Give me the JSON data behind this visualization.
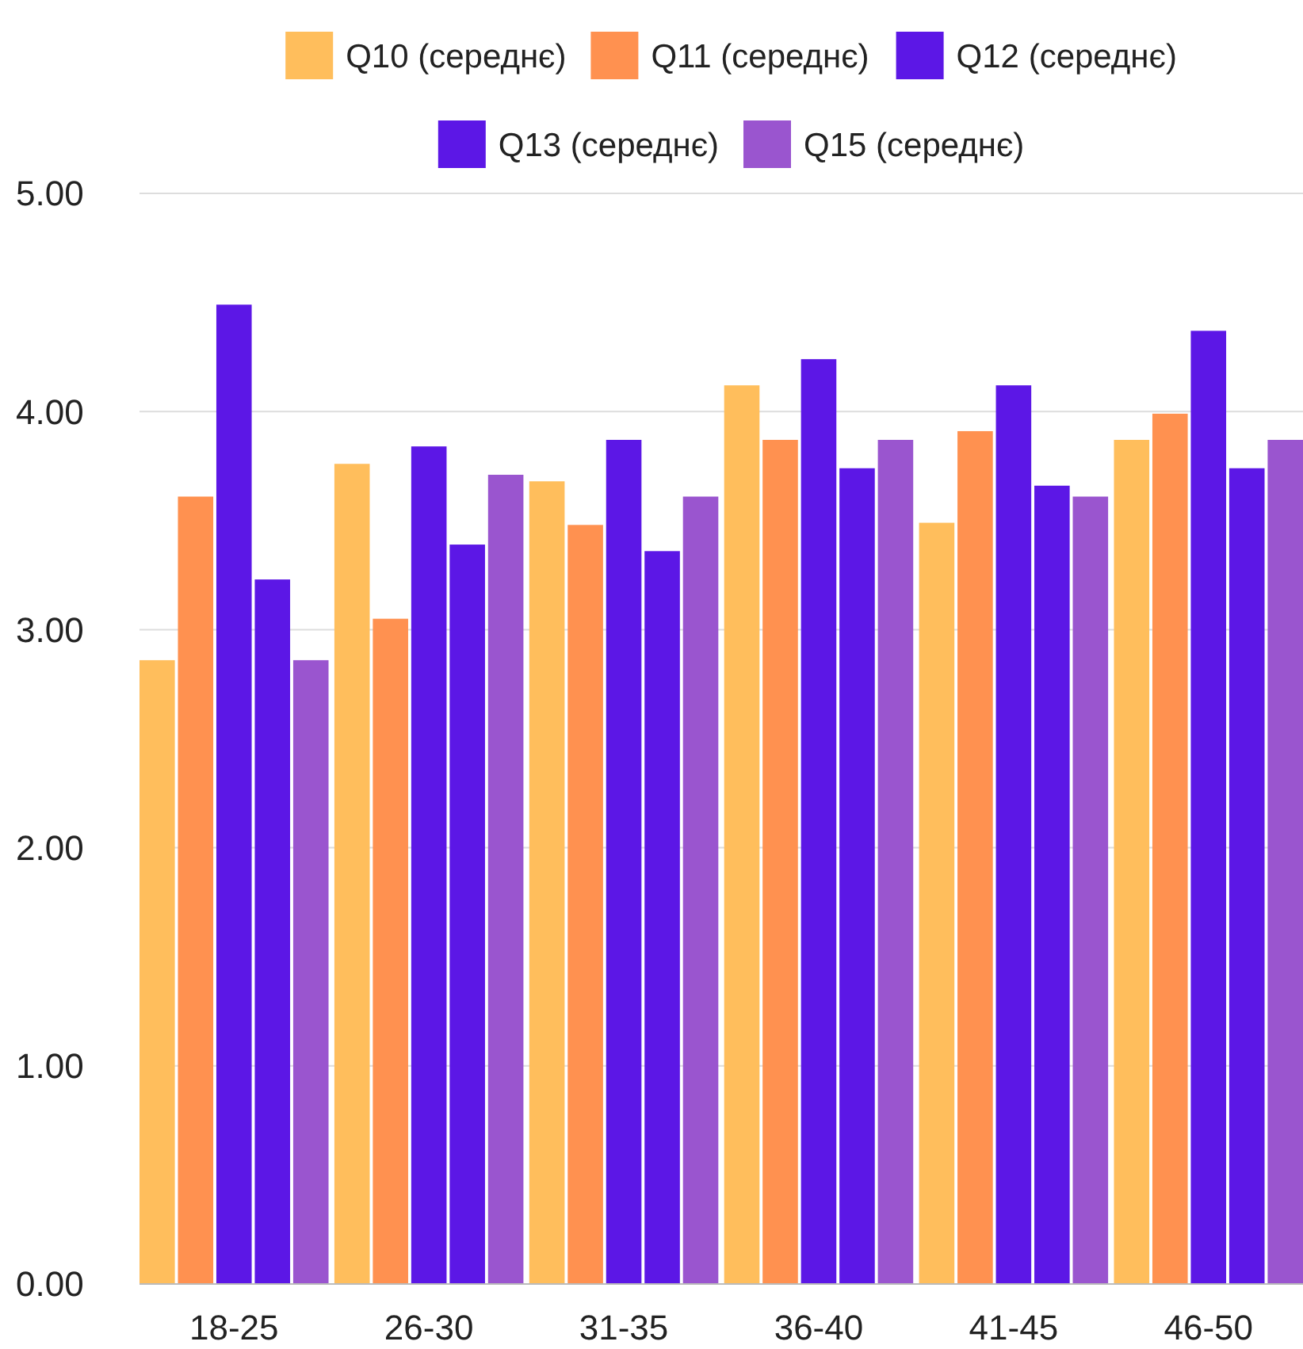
{
  "chart_data": {
    "type": "bar",
    "categories": [
      "18-25",
      "26-30",
      "31-35",
      "36-40",
      "41-45",
      "46-50"
    ],
    "series": [
      {
        "name": "Q10 (середнє)",
        "color": "#ffbe5c",
        "values": [
          2.86,
          3.76,
          3.68,
          4.12,
          3.49,
          3.87
        ]
      },
      {
        "name": "Q11 (середнє)",
        "color": "#ff9150",
        "values": [
          3.61,
          3.05,
          3.48,
          3.87,
          3.91,
          3.99
        ]
      },
      {
        "name": "Q12 (середнє)",
        "color": "#5c17e6",
        "values": [
          4.49,
          3.84,
          3.87,
          4.24,
          4.12,
          4.37
        ]
      },
      {
        "name": "Q13 (середнє)",
        "color": "#5c17e6",
        "values": [
          3.23,
          3.39,
          3.36,
          3.74,
          3.66,
          3.74
        ]
      },
      {
        "name": "Q15 (середнє)",
        "color": "#9a55cf",
        "values": [
          2.86,
          3.71,
          3.61,
          3.87,
          3.61,
          3.87
        ]
      }
    ],
    "ylim": [
      0,
      5
    ],
    "yticks": [
      {
        "value": 0,
        "label": "0.00"
      },
      {
        "value": 1,
        "label": "1.00"
      },
      {
        "value": 2,
        "label": "2.00"
      },
      {
        "value": 3,
        "label": "3.00"
      },
      {
        "value": 4,
        "label": "4.00"
      },
      {
        "value": 5,
        "label": "5.00"
      }
    ],
    "grid": "y",
    "legend": "top"
  }
}
